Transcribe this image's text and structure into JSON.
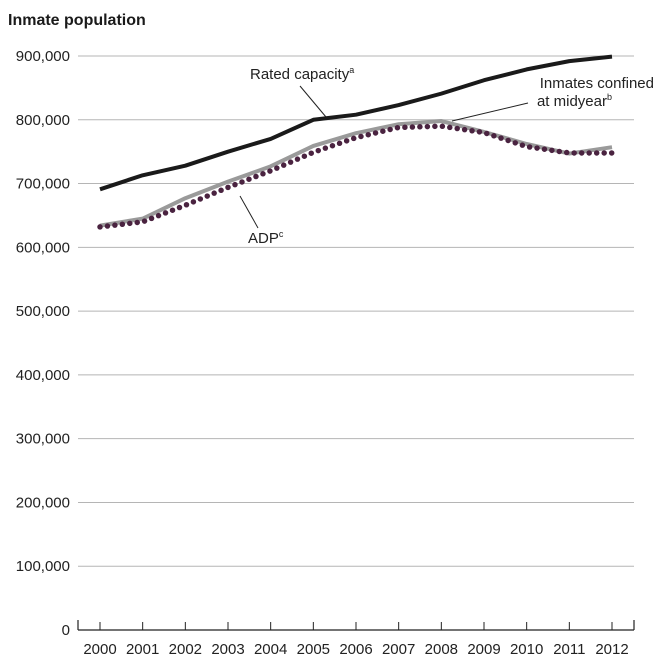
{
  "chart_data": {
    "type": "line",
    "title": "",
    "ylabel": "Inmate population",
    "xlabel": "",
    "x": [
      2000,
      2001,
      2002,
      2003,
      2004,
      2005,
      2006,
      2007,
      2008,
      2009,
      2010,
      2011,
      2012
    ],
    "ylim": [
      0,
      900000
    ],
    "yticks": [
      "0",
      "100,000",
      "200,000",
      "300,000",
      "400,000",
      "500,000",
      "600,000",
      "700,000",
      "800,000",
      "900,000"
    ],
    "xticks": [
      "2000",
      "2001",
      "2002",
      "2003",
      "2004",
      "2005",
      "2006",
      "2007",
      "2008",
      "2009",
      "2010",
      "2011",
      "2012"
    ],
    "grid": true,
    "series": [
      {
        "name": "Rated capacity",
        "footnote": "a",
        "style": "solid",
        "color": "#1a1a1a",
        "values": [
          691000,
          713000,
          728000,
          750000,
          770000,
          800000,
          808000,
          823000,
          841000,
          862000,
          879000,
          892000,
          899000
        ]
      },
      {
        "name": "Inmates confined at midyear",
        "footnote": "b",
        "style": "solid",
        "color": "#9a9a9a",
        "values": [
          634000,
          645000,
          677000,
          703000,
          727000,
          759000,
          779000,
          793000,
          798000,
          781000,
          762000,
          747000,
          757000
        ]
      },
      {
        "name": "ADP",
        "footnote": "c",
        "style": "dotted",
        "color": "#4a2340",
        "values": [
          632000,
          640000,
          666000,
          694000,
          720000,
          749000,
          772000,
          788000,
          790000,
          780000,
          758000,
          748000,
          748000
        ]
      }
    ],
    "annotations": {
      "rated": {
        "text": "Rated capacity",
        "sup": "a"
      },
      "inmates_line1": "Inmates confined",
      "inmates_line2": {
        "text": "at midyear",
        "sup": "b"
      },
      "adp": {
        "text": "ADP",
        "sup": "c"
      }
    }
  }
}
